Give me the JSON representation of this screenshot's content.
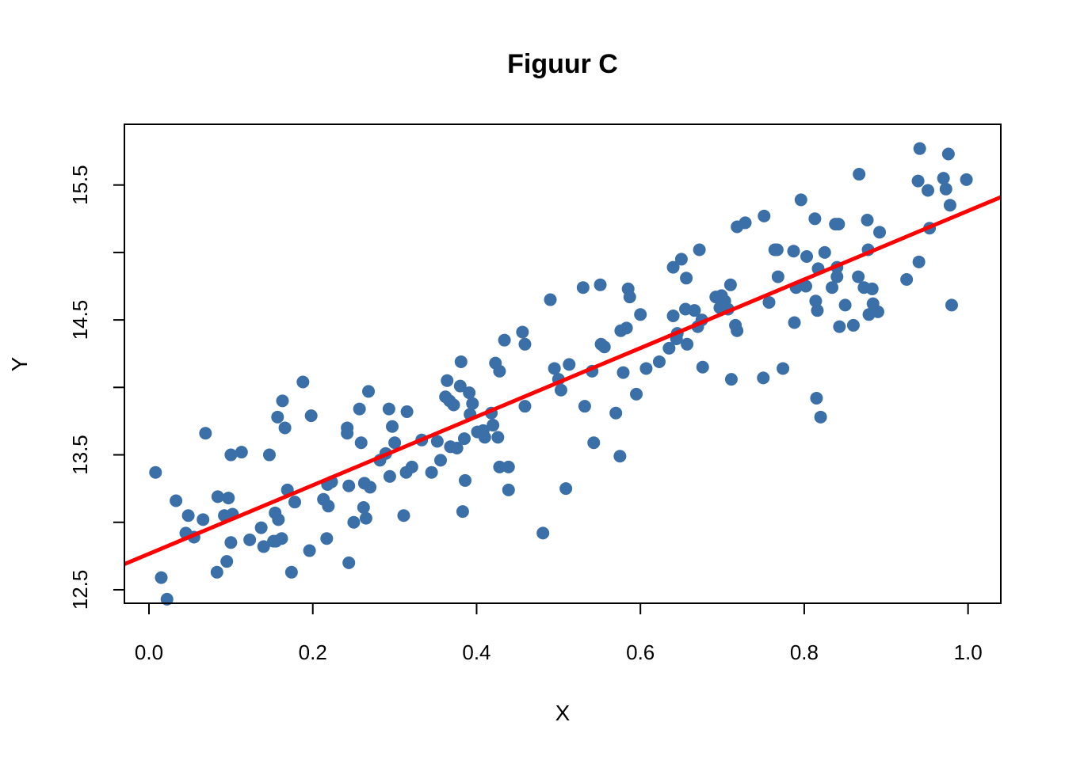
{
  "chart_data": {
    "type": "scatter",
    "title": "Figuur C",
    "xlabel": "X",
    "ylabel": "Y",
    "xlim": [
      -0.03,
      1.04
    ],
    "ylim": [
      12.4,
      15.95
    ],
    "x_ticks": [
      0.0,
      0.2,
      0.4,
      0.6,
      0.8,
      1.0
    ],
    "x_tick_labels": [
      "0.0",
      "0.2",
      "0.4",
      "0.6",
      "0.8",
      "1.0"
    ],
    "y_ticks": [
      12.5,
      13.0,
      13.5,
      14.0,
      14.5,
      15.0,
      15.5
    ],
    "y_tick_labels": [
      "12.5",
      "",
      "13.5",
      "",
      "14.5",
      "",
      "15.5"
    ],
    "grid": false,
    "point_color": "#3A6FA8",
    "line_color": "#FF0000",
    "series": [
      {
        "type": "scatter",
        "points": [
          [
            0.008,
            13.37
          ],
          [
            0.015,
            12.59
          ],
          [
            0.022,
            12.43
          ],
          [
            0.033,
            13.16
          ],
          [
            0.045,
            12.92
          ],
          [
            0.048,
            13.05
          ],
          [
            0.055,
            12.89
          ],
          [
            0.066,
            13.02
          ],
          [
            0.069,
            13.66
          ],
          [
            0.083,
            12.63
          ],
          [
            0.084,
            13.19
          ],
          [
            0.092,
            13.05
          ],
          [
            0.095,
            12.71
          ],
          [
            0.097,
            13.18
          ],
          [
            0.1,
            12.85
          ],
          [
            0.1,
            13.5
          ],
          [
            0.102,
            13.06
          ],
          [
            0.113,
            13.52
          ],
          [
            0.123,
            12.87
          ],
          [
            0.137,
            12.96
          ],
          [
            0.14,
            12.82
          ],
          [
            0.147,
            13.5
          ],
          [
            0.152,
            12.86
          ],
          [
            0.154,
            13.07
          ],
          [
            0.155,
            12.86
          ],
          [
            0.157,
            13.78
          ],
          [
            0.158,
            13.02
          ],
          [
            0.162,
            12.88
          ],
          [
            0.163,
            13.9
          ],
          [
            0.166,
            13.7
          ],
          [
            0.169,
            13.24
          ],
          [
            0.174,
            12.63
          ],
          [
            0.178,
            13.15
          ],
          [
            0.188,
            14.04
          ],
          [
            0.196,
            12.79
          ],
          [
            0.198,
            13.79
          ],
          [
            0.213,
            13.17
          ],
          [
            0.217,
            12.88
          ],
          [
            0.218,
            13.28
          ],
          [
            0.219,
            13.12
          ],
          [
            0.223,
            13.3
          ],
          [
            0.244,
            12.7
          ],
          [
            0.244,
            13.27
          ],
          [
            0.242,
            13.7
          ],
          [
            0.242,
            13.66
          ],
          [
            0.25,
            13.0
          ],
          [
            0.257,
            13.84
          ],
          [
            0.259,
            13.59
          ],
          [
            0.262,
            13.11
          ],
          [
            0.263,
            13.29
          ],
          [
            0.265,
            13.03
          ],
          [
            0.268,
            13.97
          ],
          [
            0.27,
            13.26
          ],
          [
            0.282,
            13.46
          ],
          [
            0.289,
            13.51
          ],
          [
            0.293,
            13.84
          ],
          [
            0.294,
            13.34
          ],
          [
            0.297,
            13.71
          ],
          [
            0.3,
            13.59
          ],
          [
            0.311,
            13.05
          ],
          [
            0.314,
            13.37
          ],
          [
            0.315,
            13.82
          ],
          [
            0.321,
            13.41
          ],
          [
            0.333,
            13.61
          ],
          [
            0.345,
            13.37
          ],
          [
            0.352,
            13.6
          ],
          [
            0.356,
            13.46
          ],
          [
            0.362,
            13.93
          ],
          [
            0.364,
            14.05
          ],
          [
            0.367,
            13.9
          ],
          [
            0.368,
            13.56
          ],
          [
            0.372,
            13.87
          ],
          [
            0.376,
            13.55
          ],
          [
            0.38,
            14.01
          ],
          [
            0.381,
            14.19
          ],
          [
            0.383,
            13.08
          ],
          [
            0.385,
            13.62
          ],
          [
            0.386,
            13.31
          ],
          [
            0.391,
            13.96
          ],
          [
            0.392,
            13.8
          ],
          [
            0.395,
            13.88
          ],
          [
            0.401,
            13.67
          ],
          [
            0.408,
            13.68
          ],
          [
            0.41,
            13.63
          ],
          [
            0.418,
            13.81
          ],
          [
            0.42,
            13.72
          ],
          [
            0.423,
            14.18
          ],
          [
            0.426,
            13.63
          ],
          [
            0.428,
            14.12
          ],
          [
            0.428,
            13.41
          ],
          [
            0.434,
            14.35
          ],
          [
            0.439,
            13.41
          ],
          [
            0.439,
            13.24
          ],
          [
            0.456,
            14.41
          ],
          [
            0.459,
            14.32
          ],
          [
            0.459,
            13.86
          ],
          [
            0.481,
            12.92
          ],
          [
            0.49,
            14.65
          ],
          [
            0.495,
            14.14
          ],
          [
            0.5,
            14.06
          ],
          [
            0.503,
            13.98
          ],
          [
            0.509,
            13.25
          ],
          [
            0.513,
            14.17
          ],
          [
            0.53,
            14.74
          ],
          [
            0.532,
            13.86
          ],
          [
            0.541,
            14.12
          ],
          [
            0.543,
            13.59
          ],
          [
            0.551,
            14.76
          ],
          [
            0.552,
            14.32
          ],
          [
            0.556,
            14.3
          ],
          [
            0.57,
            13.81
          ],
          [
            0.575,
            13.49
          ],
          [
            0.576,
            14.42
          ],
          [
            0.579,
            14.11
          ],
          [
            0.583,
            14.44
          ],
          [
            0.585,
            14.73
          ],
          [
            0.587,
            14.67
          ],
          [
            0.595,
            13.95
          ],
          [
            0.6,
            14.54
          ],
          [
            0.607,
            14.14
          ],
          [
            0.623,
            14.19
          ],
          [
            0.635,
            14.29
          ],
          [
            0.64,
            14.89
          ],
          [
            0.64,
            14.53
          ],
          [
            0.644,
            14.36
          ],
          [
            0.645,
            14.4
          ],
          [
            0.65,
            14.95
          ],
          [
            0.655,
            14.58
          ],
          [
            0.656,
            14.81
          ],
          [
            0.657,
            14.32
          ],
          [
            0.666,
            14.57
          ],
          [
            0.67,
            14.45
          ],
          [
            0.672,
            15.02
          ],
          [
            0.675,
            14.5
          ],
          [
            0.676,
            14.15
          ],
          [
            0.692,
            14.67
          ],
          [
            0.697,
            14.59
          ],
          [
            0.699,
            14.68
          ],
          [
            0.703,
            14.64
          ],
          [
            0.707,
            14.58
          ],
          [
            0.71,
            14.76
          ],
          [
            0.711,
            14.06
          ],
          [
            0.716,
            14.46
          ],
          [
            0.718,
            14.42
          ],
          [
            0.718,
            15.19
          ],
          [
            0.728,
            15.22
          ],
          [
            0.75,
            14.07
          ],
          [
            0.751,
            15.27
          ],
          [
            0.757,
            14.63
          ],
          [
            0.764,
            15.02
          ],
          [
            0.767,
            15.02
          ],
          [
            0.768,
            14.82
          ],
          [
            0.774,
            14.14
          ],
          [
            0.787,
            15.01
          ],
          [
            0.788,
            14.48
          ],
          [
            0.79,
            14.74
          ],
          [
            0.796,
            15.39
          ],
          [
            0.802,
            14.75
          ],
          [
            0.803,
            14.97
          ],
          [
            0.813,
            15.25
          ],
          [
            0.814,
            14.64
          ],
          [
            0.815,
            13.92
          ],
          [
            0.816,
            14.57
          ],
          [
            0.817,
            14.88
          ],
          [
            0.82,
            13.78
          ],
          [
            0.825,
            15.0
          ],
          [
            0.834,
            14.74
          ],
          [
            0.838,
            15.21
          ],
          [
            0.84,
            14.89
          ],
          [
            0.84,
            14.82
          ],
          [
            0.842,
            15.21
          ],
          [
            0.843,
            14.45
          ],
          [
            0.85,
            14.61
          ],
          [
            0.86,
            14.46
          ],
          [
            0.866,
            14.82
          ],
          [
            0.867,
            15.58
          ],
          [
            0.873,
            14.74
          ],
          [
            0.877,
            15.24
          ],
          [
            0.878,
            15.02
          ],
          [
            0.879,
            14.54
          ],
          [
            0.883,
            14.73
          ],
          [
            0.884,
            14.62
          ],
          [
            0.89,
            14.56
          ],
          [
            0.892,
            15.15
          ],
          [
            0.925,
            14.8
          ],
          [
            0.939,
            15.53
          ],
          [
            0.94,
            14.93
          ],
          [
            0.941,
            15.77
          ],
          [
            0.951,
            15.46
          ],
          [
            0.953,
            15.18
          ],
          [
            0.97,
            15.55
          ],
          [
            0.973,
            15.47
          ],
          [
            0.976,
            15.73
          ],
          [
            0.978,
            15.35
          ],
          [
            0.98,
            14.61
          ],
          [
            0.998,
            15.54
          ]
        ]
      },
      {
        "type": "line",
        "x": [
          -0.03,
          1.04
        ],
        "y": [
          12.69,
          15.41
        ]
      }
    ]
  }
}
